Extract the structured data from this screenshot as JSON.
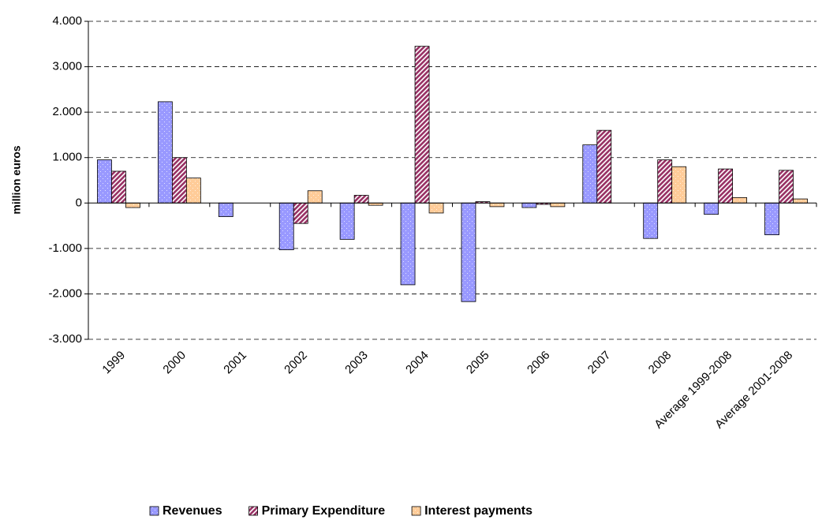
{
  "chart_data": {
    "type": "bar",
    "y_label": "million euros",
    "categories": [
      "1999",
      "2000",
      "2001",
      "2002",
      "2003",
      "2004",
      "2005",
      "2006",
      "2007",
      "2008",
      "Average 1999-2008",
      "Average 2001-2008"
    ],
    "series": [
      {
        "name": "Revenues",
        "color": "#9999ff",
        "pattern": "dots",
        "values": [
          950,
          2230,
          -300,
          -1030,
          -800,
          -1800,
          -2170,
          -100,
          1280,
          -780,
          -250,
          -700
        ]
      },
      {
        "name": "Primary Expenditure",
        "color": "#993366",
        "pattern": "stripes",
        "values": [
          700,
          1000,
          0,
          -450,
          170,
          3450,
          30,
          -30,
          1600,
          950,
          750,
          720
        ]
      },
      {
        "name": "Interest payments",
        "color": "#ffcc99",
        "pattern": "dots",
        "values": [
          -100,
          550,
          0,
          270,
          -50,
          -220,
          -80,
          -80,
          0,
          800,
          120,
          90
        ]
      }
    ],
    "ylim": [
      -3000,
      4000
    ],
    "yticks": [
      {
        "value": -3000,
        "label": "-3.000"
      },
      {
        "value": -2000,
        "label": "-2.000"
      },
      {
        "value": -1000,
        "label": "-1.000"
      },
      0,
      {
        "value": 1000,
        "label": "1.000"
      },
      {
        "value": 2000,
        "label": "2.000"
      },
      {
        "value": 3000,
        "label": "3.000"
      },
      {
        "value": 4000,
        "label": "4.000"
      }
    ],
    "grid": true,
    "legend": "bottom"
  }
}
